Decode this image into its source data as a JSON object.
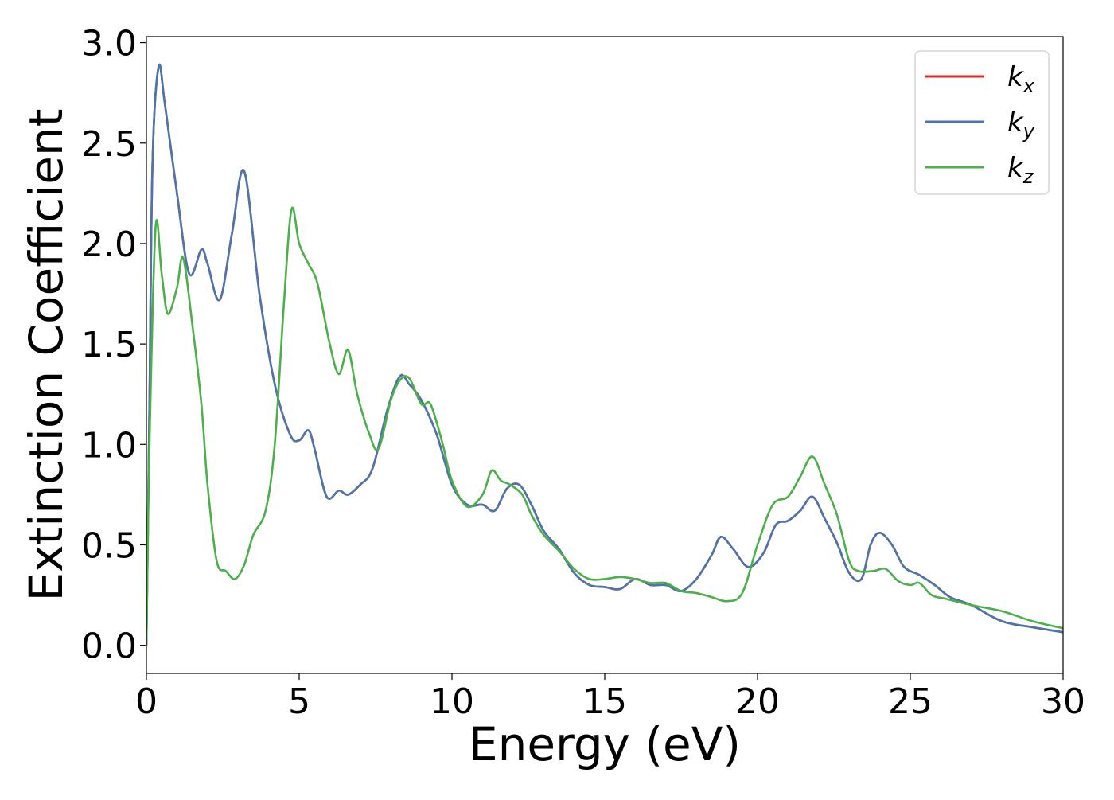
{
  "chart_data": {
    "type": "line",
    "title": "",
    "xlabel": "Energy (eV)",
    "ylabel": "Extinction Coefficient",
    "xlim": [
      0,
      30
    ],
    "ylim": [
      -0.14,
      3.03
    ],
    "xticks": [
      0,
      5,
      10,
      15,
      20,
      25,
      30
    ],
    "xtick_labels": [
      "0",
      "5",
      "10",
      "15",
      "20",
      "25",
      "30"
    ],
    "yticks": [
      0.0,
      0.5,
      1.0,
      1.5,
      2.0,
      2.5,
      3.0
    ],
    "ytick_labels": [
      "0.0",
      "0.5",
      "1.0",
      "1.5",
      "2.0",
      "2.5",
      "3.0"
    ],
    "grid": false,
    "legend_position": "top-right",
    "series": [
      {
        "name": "k_x",
        "label_main": "k",
        "label_sub": "x",
        "color": "#d62728",
        "points": [
          [
            0,
            0.0
          ],
          [
            0.1,
            1.2
          ],
          [
            0.2,
            2.4
          ],
          [
            0.4,
            2.88
          ],
          [
            0.6,
            2.7
          ],
          [
            1.0,
            2.25
          ],
          [
            1.4,
            1.85
          ],
          [
            1.8,
            1.97
          ],
          [
            2.0,
            1.9
          ],
          [
            2.4,
            1.72
          ],
          [
            2.8,
            2.05
          ],
          [
            3.2,
            2.36
          ],
          [
            3.7,
            1.75
          ],
          [
            4.2,
            1.3
          ],
          [
            4.7,
            1.05
          ],
          [
            5.0,
            1.02
          ],
          [
            5.3,
            1.07
          ],
          [
            5.5,
            0.98
          ],
          [
            5.9,
            0.74
          ],
          [
            6.3,
            0.77
          ],
          [
            6.6,
            0.75
          ],
          [
            7.0,
            0.8
          ],
          [
            7.4,
            0.88
          ],
          [
            7.9,
            1.18
          ],
          [
            8.3,
            1.34
          ],
          [
            8.6,
            1.3
          ],
          [
            9.0,
            1.22
          ],
          [
            9.5,
            1.05
          ],
          [
            10.0,
            0.8
          ],
          [
            10.5,
            0.7
          ],
          [
            11.0,
            0.7
          ],
          [
            11.4,
            0.67
          ],
          [
            11.8,
            0.78
          ],
          [
            12.2,
            0.8
          ],
          [
            12.6,
            0.7
          ],
          [
            13.0,
            0.57
          ],
          [
            13.5,
            0.48
          ],
          [
            14.0,
            0.36
          ],
          [
            14.5,
            0.3
          ],
          [
            15.0,
            0.29
          ],
          [
            15.5,
            0.28
          ],
          [
            16.0,
            0.33
          ],
          [
            16.5,
            0.3
          ],
          [
            17.0,
            0.3
          ],
          [
            17.5,
            0.27
          ],
          [
            18.0,
            0.33
          ],
          [
            18.5,
            0.45
          ],
          [
            18.8,
            0.54
          ],
          [
            19.2,
            0.48
          ],
          [
            19.7,
            0.39
          ],
          [
            20.2,
            0.46
          ],
          [
            20.6,
            0.6
          ],
          [
            21.0,
            0.62
          ],
          [
            21.4,
            0.67
          ],
          [
            21.8,
            0.74
          ],
          [
            22.2,
            0.63
          ],
          [
            22.6,
            0.51
          ],
          [
            23.0,
            0.36
          ],
          [
            23.4,
            0.33
          ],
          [
            23.7,
            0.5
          ],
          [
            24.0,
            0.56
          ],
          [
            24.4,
            0.5
          ],
          [
            24.8,
            0.39
          ],
          [
            25.3,
            0.35
          ],
          [
            25.8,
            0.3
          ],
          [
            26.3,
            0.24
          ],
          [
            27.0,
            0.2
          ],
          [
            28.0,
            0.12
          ],
          [
            29.0,
            0.09
          ],
          [
            30.0,
            0.065
          ]
        ]
      },
      {
        "name": "k_y",
        "label_main": "k",
        "label_sub": "y",
        "color": "#4a76ad",
        "points": [
          [
            0,
            0.0
          ],
          [
            0.1,
            1.2
          ],
          [
            0.2,
            2.4
          ],
          [
            0.4,
            2.88
          ],
          [
            0.6,
            2.7
          ],
          [
            1.0,
            2.25
          ],
          [
            1.4,
            1.85
          ],
          [
            1.8,
            1.97
          ],
          [
            2.0,
            1.9
          ],
          [
            2.4,
            1.72
          ],
          [
            2.8,
            2.05
          ],
          [
            3.2,
            2.36
          ],
          [
            3.7,
            1.75
          ],
          [
            4.2,
            1.3
          ],
          [
            4.7,
            1.05
          ],
          [
            5.0,
            1.02
          ],
          [
            5.3,
            1.07
          ],
          [
            5.5,
            0.98
          ],
          [
            5.9,
            0.74
          ],
          [
            6.3,
            0.77
          ],
          [
            6.6,
            0.75
          ],
          [
            7.0,
            0.8
          ],
          [
            7.4,
            0.88
          ],
          [
            7.9,
            1.18
          ],
          [
            8.3,
            1.34
          ],
          [
            8.6,
            1.3
          ],
          [
            9.0,
            1.22
          ],
          [
            9.5,
            1.05
          ],
          [
            10.0,
            0.8
          ],
          [
            10.5,
            0.7
          ],
          [
            11.0,
            0.7
          ],
          [
            11.4,
            0.67
          ],
          [
            11.8,
            0.78
          ],
          [
            12.2,
            0.8
          ],
          [
            12.6,
            0.7
          ],
          [
            13.0,
            0.57
          ],
          [
            13.5,
            0.48
          ],
          [
            14.0,
            0.36
          ],
          [
            14.5,
            0.3
          ],
          [
            15.0,
            0.29
          ],
          [
            15.5,
            0.28
          ],
          [
            16.0,
            0.33
          ],
          [
            16.5,
            0.3
          ],
          [
            17.0,
            0.3
          ],
          [
            17.5,
            0.27
          ],
          [
            18.0,
            0.33
          ],
          [
            18.5,
            0.45
          ],
          [
            18.8,
            0.54
          ],
          [
            19.2,
            0.48
          ],
          [
            19.7,
            0.39
          ],
          [
            20.2,
            0.46
          ],
          [
            20.6,
            0.6
          ],
          [
            21.0,
            0.62
          ],
          [
            21.4,
            0.67
          ],
          [
            21.8,
            0.74
          ],
          [
            22.2,
            0.63
          ],
          [
            22.6,
            0.51
          ],
          [
            23.0,
            0.36
          ],
          [
            23.4,
            0.33
          ],
          [
            23.7,
            0.5
          ],
          [
            24.0,
            0.56
          ],
          [
            24.4,
            0.5
          ],
          [
            24.8,
            0.39
          ],
          [
            25.3,
            0.35
          ],
          [
            25.8,
            0.3
          ],
          [
            26.3,
            0.24
          ],
          [
            27.0,
            0.2
          ],
          [
            28.0,
            0.12
          ],
          [
            29.0,
            0.09
          ],
          [
            30.0,
            0.065
          ]
        ]
      },
      {
        "name": "k_z",
        "label_main": "k",
        "label_sub": "z",
        "color": "#4daf4a",
        "points": [
          [
            0,
            0.0
          ],
          [
            0.1,
            1.0
          ],
          [
            0.3,
            2.08
          ],
          [
            0.5,
            1.85
          ],
          [
            0.7,
            1.65
          ],
          [
            1.0,
            1.78
          ],
          [
            1.2,
            1.93
          ],
          [
            1.5,
            1.6
          ],
          [
            1.8,
            1.2
          ],
          [
            2.0,
            0.8
          ],
          [
            2.3,
            0.42
          ],
          [
            2.6,
            0.37
          ],
          [
            2.9,
            0.33
          ],
          [
            3.2,
            0.4
          ],
          [
            3.5,
            0.55
          ],
          [
            3.9,
            0.67
          ],
          [
            4.2,
            1.0
          ],
          [
            4.5,
            1.7
          ],
          [
            4.75,
            2.17
          ],
          [
            5.0,
            2.0
          ],
          [
            5.3,
            1.9
          ],
          [
            5.6,
            1.8
          ],
          [
            6.0,
            1.5
          ],
          [
            6.3,
            1.35
          ],
          [
            6.6,
            1.47
          ],
          [
            6.9,
            1.25
          ],
          [
            7.3,
            1.05
          ],
          [
            7.6,
            0.98
          ],
          [
            8.0,
            1.22
          ],
          [
            8.3,
            1.32
          ],
          [
            8.6,
            1.33
          ],
          [
            9.0,
            1.2
          ],
          [
            9.3,
            1.2
          ],
          [
            9.7,
            1.0
          ],
          [
            10.0,
            0.82
          ],
          [
            10.5,
            0.69
          ],
          [
            11.0,
            0.75
          ],
          [
            11.3,
            0.87
          ],
          [
            11.6,
            0.82
          ],
          [
            11.9,
            0.8
          ],
          [
            12.3,
            0.75
          ],
          [
            12.6,
            0.65
          ],
          [
            13.0,
            0.55
          ],
          [
            13.5,
            0.47
          ],
          [
            14.0,
            0.38
          ],
          [
            14.5,
            0.33
          ],
          [
            15.0,
            0.33
          ],
          [
            15.5,
            0.34
          ],
          [
            16.0,
            0.33
          ],
          [
            16.5,
            0.31
          ],
          [
            17.0,
            0.31
          ],
          [
            17.5,
            0.27
          ],
          [
            18.0,
            0.26
          ],
          [
            18.5,
            0.24
          ],
          [
            19.0,
            0.22
          ],
          [
            19.5,
            0.26
          ],
          [
            20.0,
            0.5
          ],
          [
            20.5,
            0.7
          ],
          [
            21.0,
            0.74
          ],
          [
            21.4,
            0.84
          ],
          [
            21.8,
            0.94
          ],
          [
            22.2,
            0.8
          ],
          [
            22.6,
            0.65
          ],
          [
            23.0,
            0.42
          ],
          [
            23.3,
            0.37
          ],
          [
            23.8,
            0.37
          ],
          [
            24.2,
            0.38
          ],
          [
            24.6,
            0.32
          ],
          [
            25.0,
            0.3
          ],
          [
            25.3,
            0.31
          ],
          [
            25.7,
            0.25
          ],
          [
            26.2,
            0.23
          ],
          [
            27.0,
            0.2
          ],
          [
            28.0,
            0.17
          ],
          [
            29.0,
            0.12
          ],
          [
            30.0,
            0.085
          ]
        ]
      }
    ]
  }
}
